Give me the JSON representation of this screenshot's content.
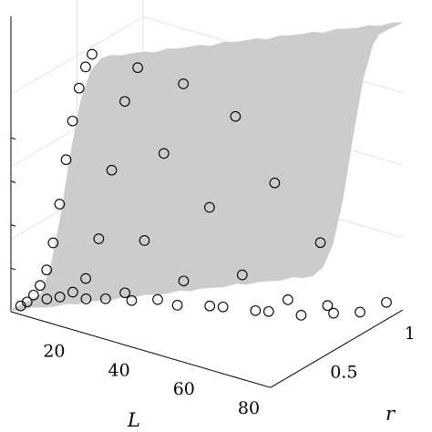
{
  "chart_data": {
    "type": "scatter",
    "subtype": "3d-surface-with-scatter-points",
    "title": "",
    "xlabel": "L",
    "ylabel": "r",
    "zlabel": "",
    "x_ticks": [
      "20",
      "40",
      "60",
      "80"
    ],
    "y_ticks": [
      "0.5",
      "1"
    ],
    "x_range": [
      5,
      85
    ],
    "y_range": [
      0,
      1
    ],
    "z_range": [
      0,
      1
    ],
    "grid": true,
    "legend": "none",
    "colors": {
      "surface": "#cccccc",
      "marker_edge": "#000000",
      "marker_fill": "#ffffff",
      "axis": "#000000",
      "grid": "#e2e2e2"
    },
    "series": [
      {
        "marker": "open-circle",
        "points": [
          {
            "L": 8,
            "r": 0.0,
            "z": 0.03
          },
          {
            "L": 10,
            "r": 0.0,
            "z": 0.05
          },
          {
            "L": 12,
            "r": 0.0,
            "z": 0.08
          },
          {
            "L": 14,
            "r": 0.0,
            "z": 0.12
          },
          {
            "L": 16,
            "r": 0.0,
            "z": 0.18
          },
          {
            "L": 18,
            "r": 0.0,
            "z": 0.28
          },
          {
            "L": 20,
            "r": 0.0,
            "z": 0.42
          },
          {
            "L": 22,
            "r": 0.0,
            "z": 0.58
          },
          {
            "L": 24,
            "r": 0.0,
            "z": 0.72
          },
          {
            "L": 26,
            "r": 0.0,
            "z": 0.84
          },
          {
            "L": 28,
            "r": 0.0,
            "z": 0.92
          },
          {
            "L": 30,
            "r": 0.0,
            "z": 0.97
          },
          {
            "L": 12,
            "r": 0.1,
            "z": 0.04
          },
          {
            "L": 16,
            "r": 0.1,
            "z": 0.06
          },
          {
            "L": 20,
            "r": 0.1,
            "z": 0.09
          },
          {
            "L": 24,
            "r": 0.1,
            "z": 0.15
          },
          {
            "L": 28,
            "r": 0.1,
            "z": 0.3
          },
          {
            "L": 32,
            "r": 0.1,
            "z": 0.55
          },
          {
            "L": 36,
            "r": 0.1,
            "z": 0.8
          },
          {
            "L": 40,
            "r": 0.1,
            "z": 0.93
          },
          {
            "L": 20,
            "r": 0.2,
            "z": 0.04
          },
          {
            "L": 26,
            "r": 0.2,
            "z": 0.06
          },
          {
            "L": 32,
            "r": 0.2,
            "z": 0.1
          },
          {
            "L": 38,
            "r": 0.2,
            "z": 0.3
          },
          {
            "L": 44,
            "r": 0.2,
            "z": 0.62
          },
          {
            "L": 50,
            "r": 0.2,
            "z": 0.88
          },
          {
            "L": 30,
            "r": 0.3,
            "z": 0.04
          },
          {
            "L": 38,
            "r": 0.3,
            "z": 0.07
          },
          {
            "L": 46,
            "r": 0.3,
            "z": 0.16
          },
          {
            "L": 54,
            "r": 0.3,
            "z": 0.44
          },
          {
            "L": 62,
            "r": 0.3,
            "z": 0.78
          },
          {
            "L": 40,
            "r": 0.4,
            "z": 0.03
          },
          {
            "L": 50,
            "r": 0.4,
            "z": 0.06
          },
          {
            "L": 60,
            "r": 0.4,
            "z": 0.2
          },
          {
            "L": 70,
            "r": 0.4,
            "z": 0.55
          },
          {
            "L": 50,
            "r": 0.5,
            "z": 0.03
          },
          {
            "L": 60,
            "r": 0.5,
            "z": 0.05
          },
          {
            "L": 70,
            "r": 0.5,
            "z": 0.12
          },
          {
            "L": 80,
            "r": 0.5,
            "z": 0.35
          },
          {
            "L": 60,
            "r": 0.6,
            "z": 0.02
          },
          {
            "L": 70,
            "r": 0.6,
            "z": 0.04
          },
          {
            "L": 80,
            "r": 0.6,
            "z": 0.08
          },
          {
            "L": 70,
            "r": 0.8,
            "z": 0.02
          },
          {
            "L": 80,
            "r": 0.8,
            "z": 0.03
          },
          {
            "L": 80,
            "r": 1.0,
            "z": 0.01
          }
        ]
      }
    ]
  }
}
